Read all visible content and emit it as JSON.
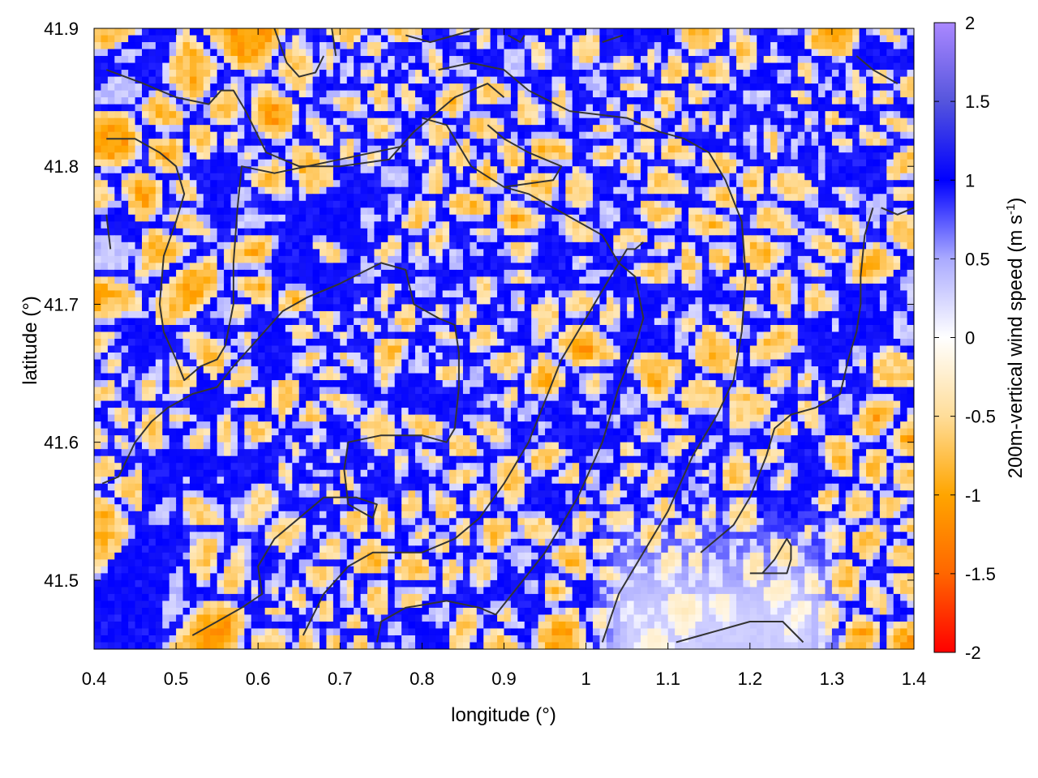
{
  "chart_data": {
    "type": "heatmap",
    "title": "",
    "xlabel": "longitude (°)",
    "ylabel": "latitude (°)",
    "xlim": [
      0.4,
      1.4
    ],
    "ylim": [
      41.45,
      41.9
    ],
    "xticks": [
      0.4,
      0.5,
      0.6,
      0.7,
      0.8,
      0.9,
      1.0,
      1.1,
      1.2,
      1.3,
      1.4
    ],
    "xtick_labels": [
      "0.4",
      "0.5",
      "0.6",
      "0.7",
      "0.8",
      "0.9",
      "1",
      "1.1",
      "1.2",
      "1.3",
      "1.4"
    ],
    "yticks": [
      41.5,
      41.6,
      41.7,
      41.8,
      41.9
    ],
    "ytick_labels": [
      "41.5",
      "41.6",
      "41.7",
      "41.8",
      "41.9"
    ],
    "colorbar": {
      "label_main": "200m-vertical wind speed (m s",
      "label_sup": "-1",
      "label_end": ")",
      "range": [
        -2,
        2
      ],
      "ticks": [
        -2,
        -1.5,
        -1,
        -0.5,
        0,
        0.5,
        1,
        1.5,
        2
      ],
      "tick_labels": [
        "-2",
        "-1.5",
        "-1",
        "-0.5",
        "0",
        "0.5",
        "1",
        "1.5",
        "2"
      ],
      "stops": [
        {
          "value": -2,
          "color": "#ff0000"
        },
        {
          "value": -1.5,
          "color": "#ff6600"
        },
        {
          "value": -1,
          "color": "#ffa500"
        },
        {
          "value": -0.5,
          "color": "#ffdd99"
        },
        {
          "value": 0,
          "color": "#ffffff"
        },
        {
          "value": 0.5,
          "color": "#aaaaff"
        },
        {
          "value": 1,
          "color": "#0000ff"
        },
        {
          "value": 1.5,
          "color": "#5555dd"
        },
        {
          "value": 2,
          "color": "#aa88ff"
        }
      ]
    },
    "grid": false,
    "grid_shape": [
      90,
      120
    ],
    "field_description_values": "cellular convective pattern: blue (updraft ~+1 m/s) thin ribbons surrounding orange (downdraft ~-0.7 m/s) cells; weaker amplitude region near lon 1.0–1.3, lat 41.45–41.55",
    "contours": [
      [
        [
          0.415,
          41.87
        ],
        [
          0.46,
          41.86
        ],
        [
          0.5,
          41.85
        ],
        [
          0.54,
          41.845
        ],
        [
          0.555,
          41.855
        ],
        [
          0.57,
          41.855
        ],
        [
          0.585,
          41.84
        ],
        [
          0.61,
          41.81
        ],
        [
          0.65,
          41.8
        ],
        [
          0.7,
          41.8
        ],
        [
          0.76,
          41.805
        ],
        [
          0.79,
          41.825
        ],
        [
          0.82,
          41.84
        ],
        [
          0.84,
          41.85
        ],
        [
          0.88,
          41.86
        ],
        [
          0.9,
          41.85
        ]
      ],
      [
        [
          0.415,
          41.82
        ],
        [
          0.45,
          41.82
        ],
        [
          0.48,
          41.81
        ],
        [
          0.5,
          41.8
        ],
        [
          0.51,
          41.78
        ],
        [
          0.5,
          41.76
        ],
        [
          0.485,
          41.735
        ],
        [
          0.48,
          41.7
        ],
        [
          0.485,
          41.68
        ],
        [
          0.5,
          41.66
        ],
        [
          0.51,
          41.645
        ],
        [
          0.53,
          41.655
        ],
        [
          0.55,
          41.66
        ],
        [
          0.56,
          41.67
        ],
        [
          0.57,
          41.7
        ],
        [
          0.57,
          41.73
        ],
        [
          0.575,
          41.77
        ],
        [
          0.58,
          41.8
        ],
        [
          0.62,
          41.795
        ],
        [
          0.66,
          41.8
        ],
        [
          0.7,
          41.805
        ],
        [
          0.74,
          41.81
        ],
        [
          0.78,
          41.815
        ]
      ],
      [
        [
          0.415,
          41.765
        ],
        [
          0.42,
          41.74
        ]
      ],
      [
        [
          0.41,
          41.57
        ],
        [
          0.43,
          41.575
        ],
        [
          0.45,
          41.6
        ],
        [
          0.47,
          41.615
        ],
        [
          0.49,
          41.625
        ],
        [
          0.52,
          41.635
        ],
        [
          0.55,
          41.64
        ],
        [
          0.57,
          41.655
        ],
        [
          0.6,
          41.675
        ],
        [
          0.63,
          41.695
        ],
        [
          0.66,
          41.705
        ],
        [
          0.7,
          41.715
        ],
        [
          0.75,
          41.73
        ],
        [
          0.78,
          41.725
        ],
        [
          0.79,
          41.7
        ],
        [
          0.82,
          41.69
        ],
        [
          0.84,
          41.685
        ],
        [
          0.845,
          41.665
        ],
        [
          0.845,
          41.64
        ],
        [
          0.84,
          41.61
        ],
        [
          0.83,
          41.6
        ],
        [
          0.8,
          41.605
        ],
        [
          0.75,
          41.605
        ],
        [
          0.71,
          41.6
        ],
        [
          0.705,
          41.58
        ],
        [
          0.71,
          41.555
        ],
        [
          0.74,
          41.545
        ],
        [
          0.745,
          41.555
        ],
        [
          0.72,
          41.56
        ],
        [
          0.68,
          41.56
        ],
        [
          0.65,
          41.545
        ],
        [
          0.62,
          41.53
        ],
        [
          0.6,
          41.51
        ],
        [
          0.605,
          41.49
        ],
        [
          0.58,
          41.48
        ],
        [
          0.55,
          41.47
        ],
        [
          0.52,
          41.46
        ]
      ],
      [
        [
          0.655,
          41.46
        ],
        [
          0.68,
          41.49
        ],
        [
          0.71,
          41.51
        ],
        [
          0.74,
          41.52
        ],
        [
          0.8,
          41.52
        ],
        [
          0.84,
          41.53
        ],
        [
          0.87,
          41.545
        ],
        [
          0.9,
          41.57
        ],
        [
          0.93,
          41.6
        ],
        [
          0.95,
          41.63
        ],
        [
          0.97,
          41.66
        ],
        [
          1.0,
          41.69
        ],
        [
          1.03,
          41.72
        ],
        [
          1.05,
          41.74
        ],
        [
          1.06,
          41.74
        ],
        [
          1.07,
          41.745
        ]
      ],
      [
        [
          0.745,
          41.455
        ],
        [
          0.75,
          41.47
        ],
        [
          0.78,
          41.48
        ],
        [
          0.83,
          41.485
        ],
        [
          0.87,
          41.48
        ],
        [
          0.89,
          41.475
        ],
        [
          0.91,
          41.49
        ],
        [
          0.95,
          41.52
        ],
        [
          0.99,
          41.56
        ],
        [
          1.02,
          41.6
        ],
        [
          1.04,
          41.64
        ],
        [
          1.06,
          41.67
        ],
        [
          1.07,
          41.69
        ],
        [
          1.06,
          41.72
        ],
        [
          1.04,
          41.73
        ],
        [
          1.02,
          41.75
        ],
        [
          0.99,
          41.76
        ],
        [
          0.96,
          41.77
        ],
        [
          0.93,
          41.78
        ],
        [
          0.9,
          41.785
        ],
        [
          0.86,
          41.8
        ],
        [
          0.83,
          41.83
        ],
        [
          0.8,
          41.835
        ]
      ],
      [
        [
          1.02,
          41.455
        ],
        [
          1.04,
          41.49
        ],
        [
          1.07,
          41.52
        ],
        [
          1.1,
          41.55
        ],
        [
          1.13,
          41.59
        ],
        [
          1.16,
          41.62
        ],
        [
          1.18,
          41.645
        ],
        [
          1.19,
          41.68
        ],
        [
          1.195,
          41.72
        ],
        [
          1.19,
          41.76
        ],
        [
          1.17,
          41.79
        ],
        [
          1.15,
          41.81
        ],
        [
          1.12,
          41.82
        ],
        [
          1.09,
          41.825
        ],
        [
          1.05,
          41.835
        ],
        [
          0.98,
          41.84
        ],
        [
          0.93,
          41.855
        ],
        [
          0.9,
          41.87
        ],
        [
          0.86,
          41.875
        ],
        [
          0.82,
          41.87
        ]
      ],
      [
        [
          0.9,
          41.785
        ],
        [
          0.96,
          41.79
        ],
        [
          0.97,
          41.8
        ],
        [
          0.93,
          41.81
        ],
        [
          0.9,
          41.82
        ],
        [
          0.88,
          41.83
        ]
      ],
      [
        [
          1.11,
          41.455
        ],
        [
          1.14,
          41.46
        ],
        [
          1.17,
          41.465
        ],
        [
          1.2,
          41.47
        ],
        [
          1.24,
          41.47
        ],
        [
          1.265,
          41.455
        ]
      ],
      [
        [
          1.2,
          41.505
        ],
        [
          1.245,
          41.505
        ],
        [
          1.25,
          41.515
        ],
        [
          1.25,
          41.525
        ],
        [
          1.245,
          41.53
        ],
        [
          1.23,
          41.515
        ],
        [
          1.215,
          41.505
        ]
      ],
      [
        [
          1.33,
          41.88
        ],
        [
          1.35,
          41.87
        ],
        [
          1.38,
          41.86
        ]
      ],
      [
        [
          1.36,
          41.77
        ],
        [
          1.38,
          41.765
        ],
        [
          1.4,
          41.77
        ]
      ],
      [
        [
          1.35,
          41.77
        ],
        [
          1.34,
          41.75
        ],
        [
          1.335,
          41.72
        ],
        [
          1.335,
          41.7
        ],
        [
          1.33,
          41.68
        ],
        [
          1.32,
          41.66
        ],
        [
          1.31,
          41.635
        ],
        [
          1.28,
          41.625
        ],
        [
          1.25,
          41.62
        ],
        [
          1.23,
          41.61
        ],
        [
          1.22,
          41.59
        ],
        [
          1.2,
          41.56
        ],
        [
          1.18,
          41.54
        ],
        [
          1.14,
          41.52
        ]
      ],
      [
        [
          0.62,
          41.9
        ],
        [
          0.635,
          41.875
        ],
        [
          0.65,
          41.865
        ],
        [
          0.67,
          41.868
        ],
        [
          0.68,
          41.88
        ]
      ],
      [
        [
          0.69,
          41.9
        ],
        [
          0.695,
          41.88
        ]
      ],
      [
        [
          0.78,
          41.895
        ],
        [
          0.81,
          41.89
        ],
        [
          0.84,
          41.895
        ],
        [
          0.87,
          41.9
        ]
      ],
      [
        [
          0.905,
          41.895
        ],
        [
          0.92,
          41.89
        ],
        [
          0.925,
          41.895
        ]
      ],
      [
        [
          1.02,
          41.89
        ],
        [
          1.045,
          41.895
        ]
      ]
    ]
  }
}
